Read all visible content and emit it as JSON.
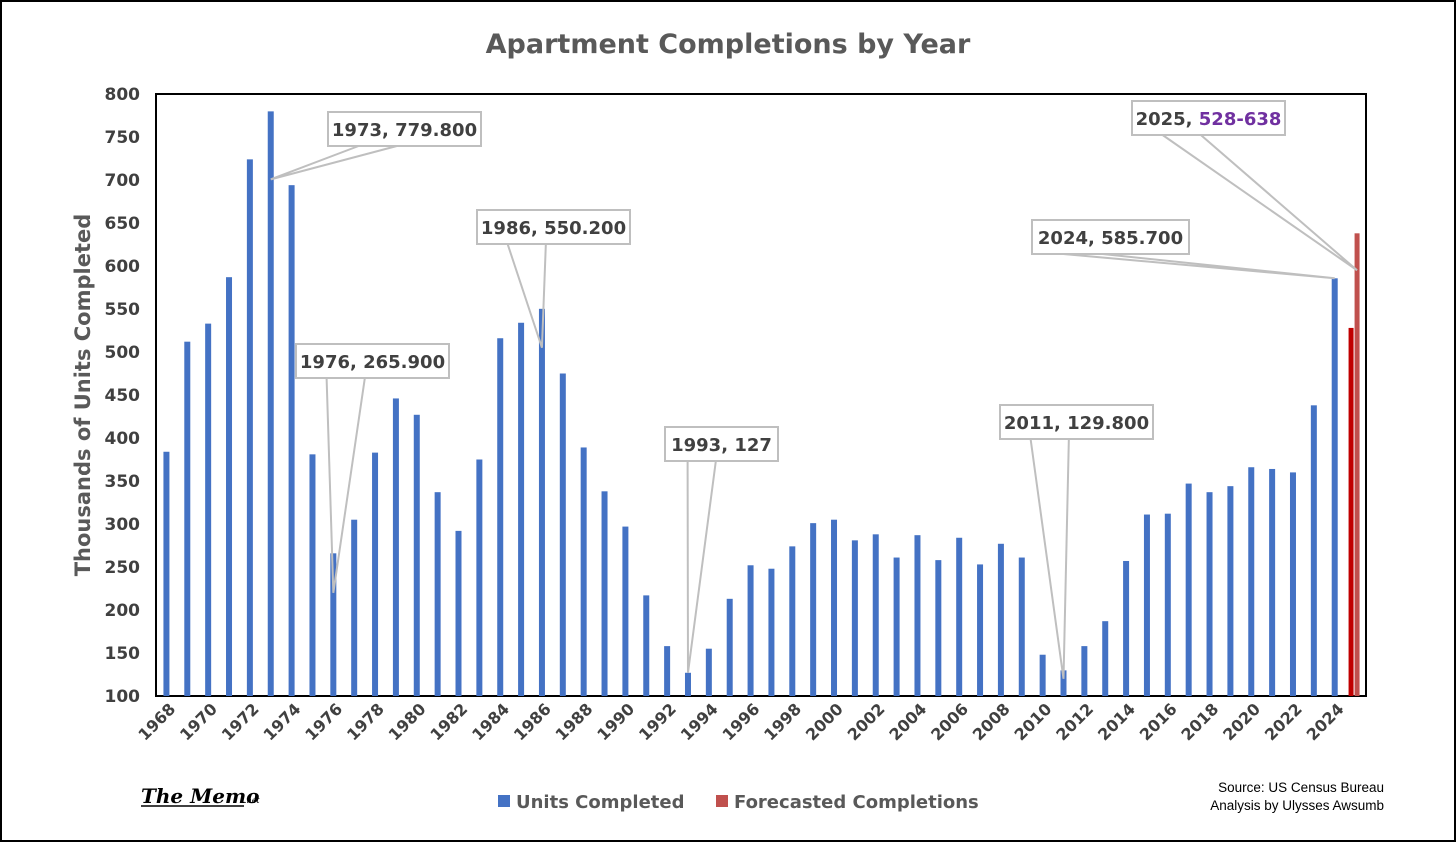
{
  "chart_data": {
    "type": "bar",
    "title": "Apartment Completions by Year",
    "ylabel": "Thousands of Units Completed",
    "xlabel": "",
    "ylim": [
      100,
      800
    ],
    "yticks": [
      "100",
      "150",
      "200",
      "250",
      "300",
      "350",
      "400",
      "450",
      "500",
      "550",
      "600",
      "650",
      "700",
      "750",
      "800"
    ],
    "grid": false,
    "legend_position": "bottom",
    "categories": [
      1968,
      1969,
      1970,
      1971,
      1972,
      1973,
      1974,
      1975,
      1976,
      1977,
      1978,
      1979,
      1980,
      1981,
      1982,
      1983,
      1984,
      1985,
      1986,
      1987,
      1988,
      1989,
      1990,
      1991,
      1992,
      1993,
      1994,
      1995,
      1996,
      1997,
      1998,
      1999,
      2000,
      2001,
      2002,
      2003,
      2004,
      2005,
      2006,
      2007,
      2008,
      2009,
      2010,
      2011,
      2012,
      2013,
      2014,
      2015,
      2016,
      2017,
      2018,
      2019,
      2020,
      2021,
      2022,
      2023,
      2024,
      2025
    ],
    "xtick_labels": [
      "1968",
      "1970",
      "1972",
      "1974",
      "1976",
      "1978",
      "1980",
      "1982",
      "1984",
      "1986",
      "1988",
      "1990",
      "1992",
      "1994",
      "1996",
      "1998",
      "2000",
      "2002",
      "2004",
      "2006",
      "2008",
      "2010",
      "2012",
      "2014",
      "2016",
      "2018",
      "2020",
      "2022",
      "2024"
    ],
    "series": [
      {
        "name": "Units Completed",
        "color": "#4472C4",
        "values": [
          384,
          512,
          533,
          587,
          724,
          779.8,
          694,
          381,
          265.9,
          305,
          383,
          446,
          427,
          337,
          292,
          375,
          516,
          534,
          550.2,
          475,
          389,
          338,
          297,
          217,
          158,
          127,
          155,
          213,
          252,
          248,
          274,
          301,
          305,
          281,
          288,
          261,
          287,
          258,
          284,
          253,
          277,
          261,
          148,
          129.8,
          158,
          187,
          257,
          311,
          312,
          347,
          337,
          344,
          366,
          364,
          360,
          438,
          585.7,
          null
        ]
      },
      {
        "name": "Forecasted Completions",
        "color": "#C0504D",
        "values": [
          null,
          null,
          null,
          null,
          null,
          null,
          null,
          null,
          null,
          null,
          null,
          null,
          null,
          null,
          null,
          null,
          null,
          null,
          null,
          null,
          null,
          null,
          null,
          null,
          null,
          null,
          null,
          null,
          null,
          null,
          null,
          null,
          null,
          null,
          null,
          null,
          null,
          null,
          null,
          null,
          null,
          null,
          null,
          null,
          null,
          null,
          null,
          null,
          null,
          null,
          null,
          null,
          null,
          null,
          null,
          null,
          null,
          [
            528,
            638
          ]
        ],
        "low_color": "#C00000",
        "high_color": "#C0504D"
      }
    ],
    "annotations": [
      {
        "year": 1973,
        "prefix": "1973, ",
        "value_text": "779.800"
      },
      {
        "year": 1976,
        "prefix": "1976, ",
        "value_text": "265.900"
      },
      {
        "year": 1986,
        "prefix": "1986, ",
        "value_text": "550.200"
      },
      {
        "year": 1993,
        "prefix": "1993, ",
        "value_text": "127"
      },
      {
        "year": 2011,
        "prefix": "2011, ",
        "value_text": "129.800"
      },
      {
        "year": 2024,
        "prefix": "2024, ",
        "value_text": "585.700"
      },
      {
        "year": 2025,
        "prefix": "2025, ",
        "value_text": "528-638",
        "value_color": "#7030A0"
      }
    ]
  },
  "branding": {
    "logo_text": "The Memo",
    "logo_suffix": ".net"
  },
  "source": {
    "line1": "Source: US Census Bureau",
    "line2": "Analysis by Ulysses Awsumb"
  }
}
